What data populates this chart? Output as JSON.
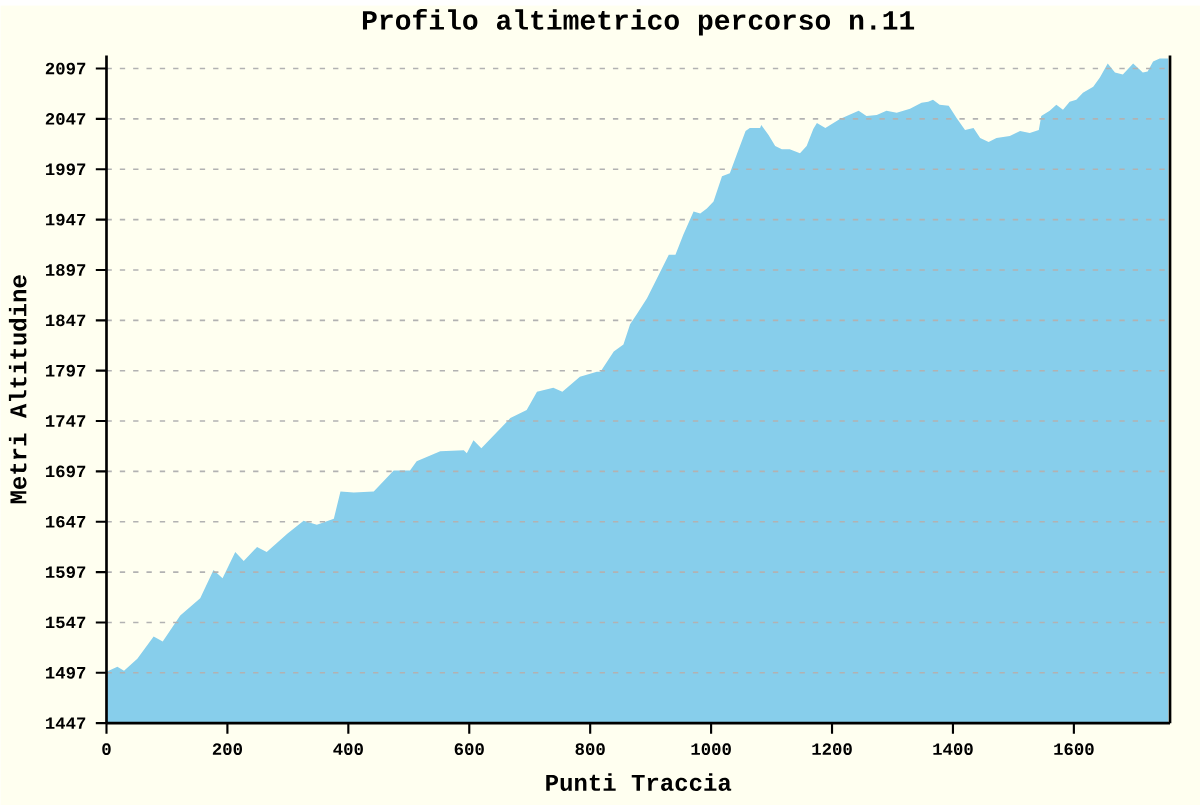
{
  "chart_data": {
    "type": "area",
    "title": "Profilo altimetrico percorso n.11",
    "xlabel": "Punti Traccia",
    "ylabel": "Metri Altitudine",
    "x": [
      0,
      18,
      29,
      51,
      78,
      93,
      122,
      155,
      177,
      192,
      213,
      227,
      249,
      265,
      299,
      326,
      348,
      376,
      387,
      409,
      442,
      475,
      502,
      513,
      552,
      591,
      596,
      607,
      620,
      668,
      695,
      712,
      739,
      754,
      783,
      811,
      817,
      839,
      855,
      866,
      877,
      894,
      905,
      930,
      941,
      954,
      971,
      982,
      993,
      1004,
      1018,
      1031,
      1042,
      1057,
      1064,
      1081,
      1083,
      1095,
      1106,
      1117,
      1130,
      1147,
      1158,
      1169,
      1175,
      1189,
      1213,
      1244,
      1257,
      1274,
      1290,
      1307,
      1329,
      1348,
      1359,
      1367,
      1378,
      1393,
      1406,
      1420,
      1434,
      1445,
      1459,
      1472,
      1494,
      1511,
      1527,
      1542,
      1546,
      1560,
      1571,
      1582,
      1593,
      1604,
      1615,
      1632,
      1643,
      1656,
      1668,
      1681,
      1698,
      1714,
      1722,
      1731,
      1742,
      1756
    ],
    "values": [
      1498,
      1503,
      1499,
      1511,
      1533,
      1528,
      1554,
      1571,
      1599,
      1591,
      1617,
      1608,
      1622,
      1617,
      1635,
      1648,
      1644,
      1650,
      1677,
      1676,
      1677,
      1698,
      1698,
      1707,
      1717,
      1718,
      1715,
      1728,
      1720,
      1750,
      1758,
      1776,
      1780,
      1776,
      1791,
      1796,
      1796,
      1816,
      1823,
      1843,
      1853,
      1869,
      1882,
      1912,
      1912,
      1932,
      1955,
      1953,
      1958,
      1965,
      1990,
      1993,
      2011,
      2035,
      2038,
      2038,
      2041,
      2031,
      2020,
      2017,
      2017,
      2013,
      2020,
      2037,
      2043,
      2038,
      2047,
      2055,
      2050,
      2051,
      2055,
      2053,
      2057,
      2063,
      2064,
      2066,
      2061,
      2060,
      2048,
      2036,
      2038,
      2028,
      2024,
      2028,
      2030,
      2035,
      2033,
      2036,
      2050,
      2055,
      2061,
      2056,
      2064,
      2066,
      2073,
      2079,
      2088,
      2102,
      2093,
      2091,
      2102,
      2093,
      2094,
      2104,
      2107,
      2107
    ],
    "color": "#87ceeb",
    "xlim": [
      0,
      1759
    ],
    "ylim": [
      1447,
      2110
    ],
    "xticks": [
      0,
      200,
      400,
      600,
      800,
      1000,
      1200,
      1400,
      1600
    ],
    "yticks": [
      1447,
      1497,
      1547,
      1597,
      1647,
      1697,
      1747,
      1797,
      1847,
      1897,
      1947,
      1997,
      2047,
      2097
    ],
    "grid": "y"
  }
}
